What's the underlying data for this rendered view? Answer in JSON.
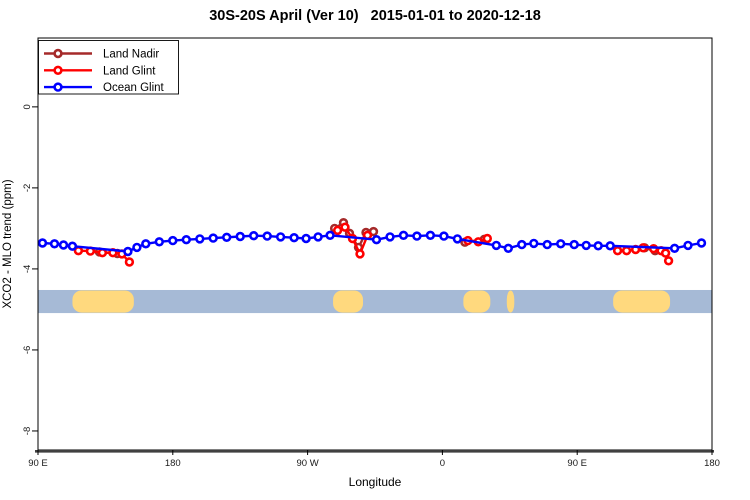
{
  "chart_data": {
    "type": "line",
    "title": "30S-20S April (Ver 10)   2015-01-01 to 2020-12-18",
    "xlabel": "Longitude",
    "ylabel": "XCO2 - MLO trend (ppm)",
    "xlim": [
      90,
      540
    ],
    "ylim": [
      -8.47,
      1.7
    ],
    "grid": false,
    "x_ticks": [
      {
        "deg": 90,
        "label": "90 E"
      },
      {
        "deg": 180,
        "label": "180"
      },
      {
        "deg": 270,
        "label": "90 W"
      },
      {
        "deg": 360,
        "label": "0"
      },
      {
        "deg": 450,
        "label": "90 E"
      },
      {
        "deg": 540,
        "label": "180"
      }
    ],
    "y_ticks": [
      {
        "value": 0,
        "label": "0"
      },
      {
        "value": -2,
        "label": "-2"
      },
      {
        "value": -4,
        "label": "-4"
      },
      {
        "value": -6,
        "label": "-6"
      },
      {
        "value": -8,
        "label": "-8"
      }
    ],
    "legend": {
      "position": "topleft",
      "entries": [
        {
          "label": "Land Nadir",
          "color": "#A52A2A"
        },
        {
          "label": "Land Glint",
          "color": "#FF0000"
        },
        {
          "label": "Ocean Glint",
          "color": "#0000FF"
        }
      ]
    },
    "series": [
      {
        "name": "Land Nadir",
        "color": "#A52A2A",
        "marker": "open-circle",
        "connect_across_gaps": false,
        "points": [
          [
            131,
            -3.58
          ],
          [
            143,
            -3.62
          ],
          [
            288,
            -3.0
          ],
          [
            294,
            -2.86
          ],
          [
            298,
            -3.12
          ],
          [
            304,
            -3.47
          ],
          [
            309,
            -3.1
          ],
          [
            314,
            -3.08
          ],
          [
            375,
            -3.34
          ],
          [
            388,
            -3.27
          ],
          [
            495,
            -3.48
          ],
          [
            502,
            -3.55
          ]
        ]
      },
      {
        "name": "Land Glint",
        "color": "#FF0000",
        "marker": "open-circle",
        "connect_across_gaps": false,
        "points": [
          [
            117,
            -3.55
          ],
          [
            125,
            -3.56
          ],
          [
            133,
            -3.6
          ],
          [
            140,
            -3.6
          ],
          [
            146,
            -3.63
          ],
          [
            151,
            -3.83
          ],
          [
            290,
            -3.05
          ],
          [
            295,
            -2.97
          ],
          [
            300,
            -3.25
          ],
          [
            305,
            -3.63
          ],
          [
            310,
            -3.17
          ],
          [
            377,
            -3.3
          ],
          [
            384,
            -3.33
          ],
          [
            390,
            -3.25
          ],
          [
            477,
            -3.55
          ],
          [
            483,
            -3.55
          ],
          [
            489,
            -3.52
          ],
          [
            494,
            -3.48
          ],
          [
            501,
            -3.5
          ],
          [
            506,
            -3.55
          ],
          [
            509,
            -3.61
          ],
          [
            511,
            -3.8
          ]
        ]
      },
      {
        "name": "Ocean Glint",
        "color": "#0000FF",
        "marker": "open-circle",
        "connect_across_gaps": true,
        "points": [
          [
            93,
            -3.36
          ],
          [
            101,
            -3.38
          ],
          [
            107,
            -3.41
          ],
          [
            113,
            -3.44
          ],
          [
            150,
            -3.57
          ],
          [
            156,
            -3.47
          ],
          [
            162,
            -3.38
          ],
          [
            171,
            -3.33
          ],
          [
            180,
            -3.3
          ],
          [
            189,
            -3.28
          ],
          [
            198,
            -3.26
          ],
          [
            207,
            -3.24
          ],
          [
            216,
            -3.22
          ],
          [
            225,
            -3.2
          ],
          [
            234,
            -3.18
          ],
          [
            243,
            -3.19
          ],
          [
            252,
            -3.21
          ],
          [
            261,
            -3.23
          ],
          [
            269,
            -3.25
          ],
          [
            277,
            -3.21
          ],
          [
            285,
            -3.17
          ],
          [
            316,
            -3.28
          ],
          [
            325,
            -3.21
          ],
          [
            334,
            -3.17
          ],
          [
            343,
            -3.19
          ],
          [
            352,
            -3.17
          ],
          [
            361,
            -3.19
          ],
          [
            370,
            -3.26
          ],
          [
            396,
            -3.42
          ],
          [
            404,
            -3.49
          ],
          [
            413,
            -3.4
          ],
          [
            421,
            -3.37
          ],
          [
            430,
            -3.4
          ],
          [
            439,
            -3.38
          ],
          [
            448,
            -3.4
          ],
          [
            456,
            -3.42
          ],
          [
            464,
            -3.43
          ],
          [
            472,
            -3.43
          ],
          [
            515,
            -3.49
          ],
          [
            524,
            -3.42
          ],
          [
            533,
            -3.36
          ]
        ]
      }
    ],
    "map_band": {
      "description": "latitude-band land/ocean strip",
      "y_range": [
        -4.52,
        -5.09
      ],
      "ocean_color": "#A6BAD6",
      "land_color": "#FFD97E",
      "land_blobs_deg": [
        [
          113,
          154
        ],
        [
          287,
          307
        ],
        [
          374,
          392
        ],
        [
          403,
          408
        ],
        [
          474,
          512
        ]
      ]
    }
  }
}
